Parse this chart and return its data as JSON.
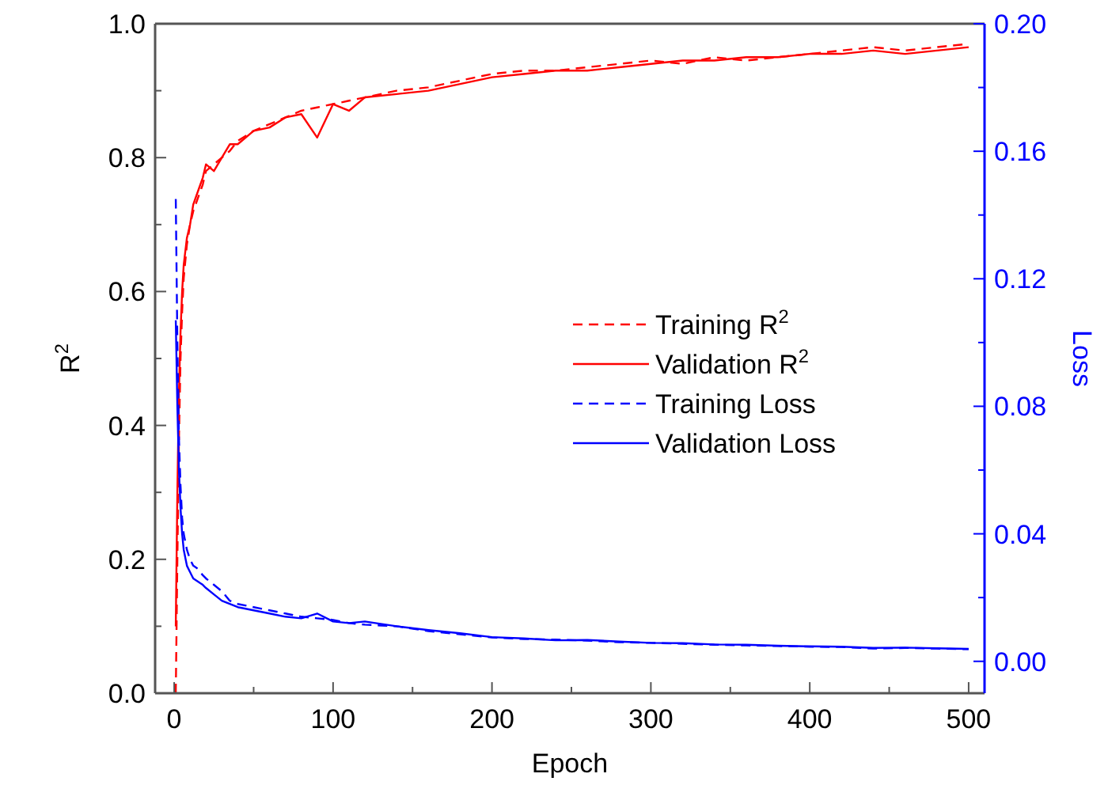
{
  "chart_data": {
    "type": "line",
    "xlabel": "Epoch",
    "ylabel": "R$^{2}$",
    "y2label": "Loss",
    "xlim": [
      -12,
      510
    ],
    "xticks": [
      0,
      {
        "value": 50,
        "label": null
      },
      100,
      {
        "value": 150,
        "label": null
      },
      200,
      {
        "value": 250,
        "label": null
      },
      300,
      {
        "value": 350,
        "label": null
      },
      400,
      {
        "value": 450,
        "label": null
      },
      500
    ],
    "ylim": [
      0,
      1
    ],
    "yticks": [
      "0.0",
      {
        "value": 0.1,
        "label": null
      },
      0.2,
      {
        "value": 0.3,
        "label": null
      },
      0.4,
      {
        "value": 0.5,
        "label": null
      },
      0.6,
      {
        "value": 0.7,
        "label": null
      },
      0.8,
      {
        "value": 0.9,
        "label": null
      },
      {
        "value": 1,
        "label": "1.0"
      }
    ],
    "y2lim": [
      -0.01,
      0.2
    ],
    "y2ticks": [
      {
        "value": 0,
        "label": "0.00"
      },
      {
        "value": 0.02,
        "label": null
      },
      0.04,
      {
        "value": 0.06,
        "label": null
      },
      0.08,
      {
        "value": 0.1,
        "label": null
      },
      0.12,
      {
        "value": 0.14,
        "label": null
      },
      0.16,
      {
        "value": 0.18,
        "label": null
      },
      {
        "value": 0.2,
        "label": "0.20"
      }
    ],
    "x": [
      1,
      2,
      3,
      4,
      5,
      6,
      8,
      10,
      12,
      15,
      18,
      20,
      25,
      30,
      35,
      40,
      50,
      60,
      70,
      80,
      90,
      100,
      110,
      120,
      140,
      160,
      180,
      200,
      220,
      240,
      260,
      280,
      300,
      320,
      340,
      360,
      380,
      400,
      420,
      440,
      460,
      480,
      500
    ],
    "legend": "right",
    "grid": false,
    "series": [
      {
        "name": "Training R$^{2}$",
        "color": "#ff0000",
        "line_style": "dashed",
        "values": [
          0.0,
          0.2,
          0.38,
          0.5,
          0.57,
          0.62,
          0.67,
          0.7,
          0.72,
          0.74,
          0.76,
          0.78,
          0.79,
          0.8,
          0.81,
          0.825,
          0.84,
          0.85,
          0.86,
          0.87,
          0.875,
          0.88,
          0.885,
          0.89,
          0.9,
          0.905,
          0.915,
          0.925,
          0.93,
          0.93,
          0.935,
          0.94,
          0.945,
          0.94,
          0.95,
          0.945,
          0.95,
          0.955,
          0.96,
          0.965,
          0.96,
          0.965,
          0.97
        ]
      },
      {
        "name": "Validation R$^{2}$",
        "color": "#ff0000",
        "line_style": "solid",
        "values": [
          0.1,
          0.3,
          0.45,
          0.54,
          0.6,
          0.64,
          0.68,
          0.7,
          0.73,
          0.75,
          0.77,
          0.79,
          0.78,
          0.8,
          0.82,
          0.82,
          0.84,
          0.845,
          0.86,
          0.865,
          0.83,
          0.88,
          0.87,
          0.89,
          0.895,
          0.9,
          0.91,
          0.92,
          0.925,
          0.93,
          0.93,
          0.935,
          0.94,
          0.945,
          0.945,
          0.95,
          0.95,
          0.955,
          0.955,
          0.96,
          0.955,
          0.96,
          0.965
        ]
      },
      {
        "name": "Training Loss",
        "color": "#0000ff",
        "line_style": "dashed",
        "axis": "y2",
        "values": [
          0.145,
          0.1,
          0.07,
          0.055,
          0.045,
          0.04,
          0.035,
          0.032,
          0.03,
          0.029,
          0.027,
          0.026,
          0.024,
          0.022,
          0.019,
          0.018,
          0.017,
          0.016,
          0.015,
          0.014,
          0.0135,
          0.013,
          0.012,
          0.0115,
          0.011,
          0.0095,
          0.0085,
          0.0075,
          0.007,
          0.0068,
          0.0065,
          0.006,
          0.0058,
          0.0055,
          0.0052,
          0.005,
          0.0048,
          0.0046,
          0.0045,
          0.004,
          0.0042,
          0.004,
          0.0038
        ]
      },
      {
        "name": "Validation Loss",
        "color": "#0000ff",
        "line_style": "solid",
        "axis": "y2",
        "values": [
          0.107,
          0.08,
          0.06,
          0.048,
          0.04,
          0.035,
          0.03,
          0.028,
          0.026,
          0.025,
          0.024,
          0.023,
          0.021,
          0.019,
          0.018,
          0.017,
          0.016,
          0.015,
          0.014,
          0.0135,
          0.015,
          0.0125,
          0.012,
          0.0125,
          0.011,
          0.0098,
          0.0088,
          0.0076,
          0.0072,
          0.0066,
          0.0067,
          0.0062,
          0.0058,
          0.0057,
          0.0053,
          0.0052,
          0.0049,
          0.0047,
          0.0046,
          0.0042,
          0.0043,
          0.0041,
          0.0039
        ]
      }
    ]
  }
}
